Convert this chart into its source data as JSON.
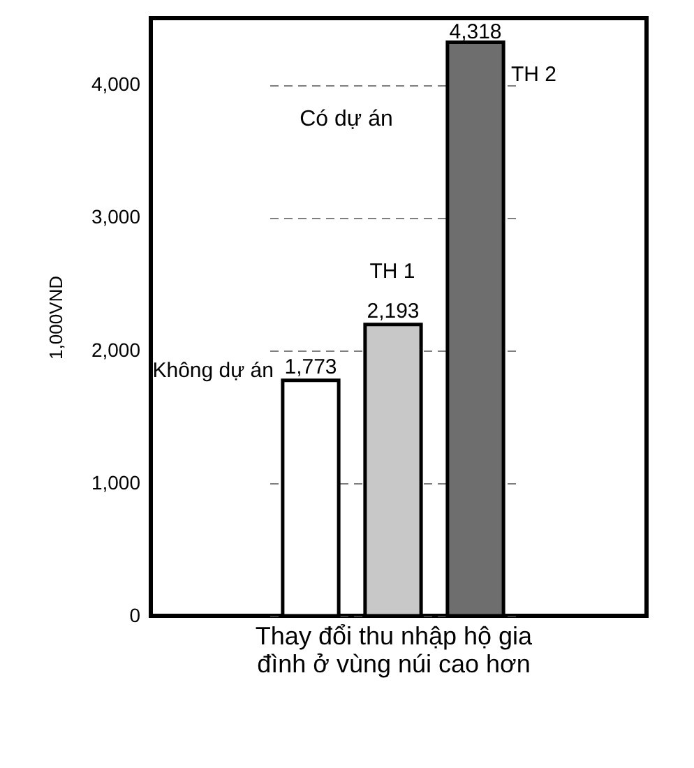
{
  "chart_data": {
    "type": "bar",
    "xlabel": "Thay đổi thu nhập hộ gia đình ở vùng núi cao hơn",
    "ylabel": "1,000VND",
    "categories": [
      null,
      null,
      null
    ],
    "values": [
      1773,
      2193,
      4318
    ],
    "value_labels": [
      "1,773",
      "2,193",
      "4,318"
    ],
    "colors": [
      "#ffffff",
      "#c8c8c8",
      "#6e6e6e"
    ],
    "ylim": [
      0,
      4500
    ],
    "yticks": [
      0,
      {
        "value": 1000,
        "label": "1,000"
      },
      {
        "value": 2000,
        "label": "2,000"
      },
      {
        "value": 3000,
        "label": "3,000"
      },
      {
        "value": 4000,
        "label": "4,000"
      }
    ],
    "grid": "y",
    "tick_labels": "y",
    "annotations": [
      "Có dự án",
      "Không dự án",
      "TH 1",
      "TH 2"
    ]
  }
}
